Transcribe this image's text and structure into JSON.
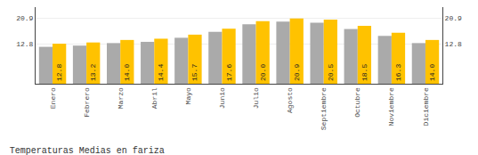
{
  "chart_data": {
    "type": "bar",
    "title": "Temperaturas Medias en fariza",
    "categories": [
      "Enero",
      "Febrero",
      "Marzo",
      "Abril",
      "Mayo",
      "Junio",
      "Julio",
      "Agosto",
      "Septiembre",
      "Octubre",
      "Noviembre",
      "Diciembre"
    ],
    "series": [
      {
        "color": "#AAAAAA",
        "values": [
          11.8,
          12.2,
          13.0,
          13.4,
          14.7,
          16.6,
          19.0,
          19.9,
          19.5,
          17.5,
          15.3,
          13.0
        ]
      },
      {
        "color": "#FFC200",
        "values": [
          12.8,
          13.2,
          14.0,
          14.4,
          15.7,
          17.6,
          20.0,
          20.9,
          20.5,
          18.5,
          16.3,
          14.0
        ],
        "data_labels": true,
        "value_labels": [
          "12.8",
          "13.2",
          "14.0",
          "14.4",
          "15.7",
          "17.6",
          "20.0",
          "20.9",
          "20.5",
          "18.5",
          "16.3",
          "14.0"
        ]
      }
    ],
    "ylim": [
      0,
      24.5
    ],
    "yticks": [
      12.8,
      20.9
    ],
    "y2lim": [
      0,
      24.5
    ],
    "y2ticks": [
      12.8,
      20.9
    ],
    "grid": true
  }
}
